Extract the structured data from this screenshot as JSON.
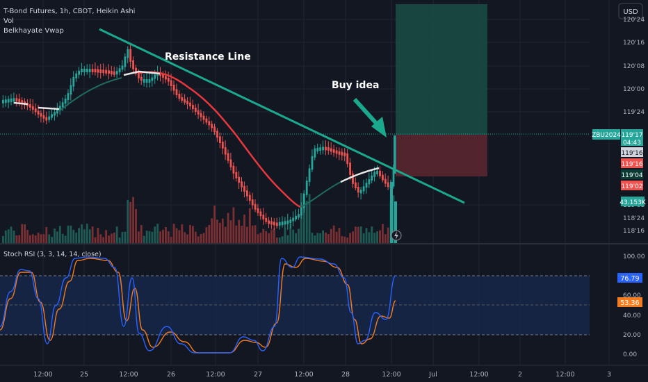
{
  "header": {
    "title": "T-Bond Futures, 1h, CBOT, Heikin Ashi",
    "vol_label": "Vol",
    "indicator_label": "Belkhayate Vwap",
    "currency_button": "USD"
  },
  "annotations": {
    "resistance_label": "Resistance Line",
    "buy_label": "Buy idea"
  },
  "price_scale": {
    "ticks": [
      "120'24",
      "120'16",
      "120'08",
      "120'00",
      "119'24",
      "119'08",
      "118'24",
      "118'16"
    ],
    "badges": {
      "symbol": "ZBU2024",
      "last_price": "119'17",
      "countdown": "04:43",
      "price_2": "119'16",
      "price_3": "119'16",
      "price_4": "119'04",
      "price_5": "119'02",
      "volume": "43.153K"
    }
  },
  "rsi": {
    "label": "Stoch RSI (3, 3, 14, 14, close)",
    "ticks": [
      "100.00",
      "80.00",
      "60.00",
      "40.00",
      "20.00",
      "0.00"
    ],
    "k_value": "76.79",
    "d_value": "53.36"
  },
  "time_axis": {
    "labels": [
      "12:00",
      "25",
      "12:00",
      "26",
      "12:00",
      "27",
      "12:00",
      "28",
      "12:00",
      "Jul",
      "12:00",
      "2",
      "12:00",
      "3"
    ]
  },
  "colors": {
    "background": "#131722",
    "up": "#26a69a",
    "down": "#ef5350",
    "trend_line": "#1ba98e",
    "vwap": "#e8383d",
    "k_line": "#2962ff",
    "d_line": "#f57c1f"
  }
}
